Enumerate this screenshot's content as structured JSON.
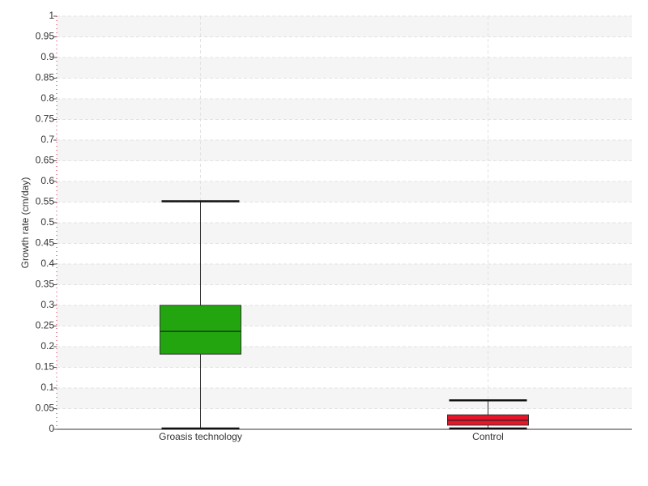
{
  "chart_data": {
    "type": "box",
    "y_label": "Growth rate (cm/day)",
    "categories": [
      "Groasis technology",
      "Control"
    ],
    "boxes": [
      {
        "min": 0.002,
        "q1": 0.182,
        "median": 0.237,
        "q3": 0.3,
        "max": 0.552,
        "color": "#22a50f"
      },
      {
        "min": 0.002,
        "q1": 0.01,
        "median": 0.022,
        "q3": 0.035,
        "max": 0.07,
        "color": "#e8152a"
      }
    ],
    "ylim": [
      0,
      1
    ],
    "yticks": [
      0,
      0.05,
      0.1,
      0.15,
      0.2,
      0.25,
      0.3,
      0.35,
      0.4,
      0.45,
      0.5,
      0.55,
      0.6,
      0.65,
      0.7,
      0.75,
      0.8,
      0.85,
      0.9,
      0.95,
      1
    ],
    "grid": true
  }
}
